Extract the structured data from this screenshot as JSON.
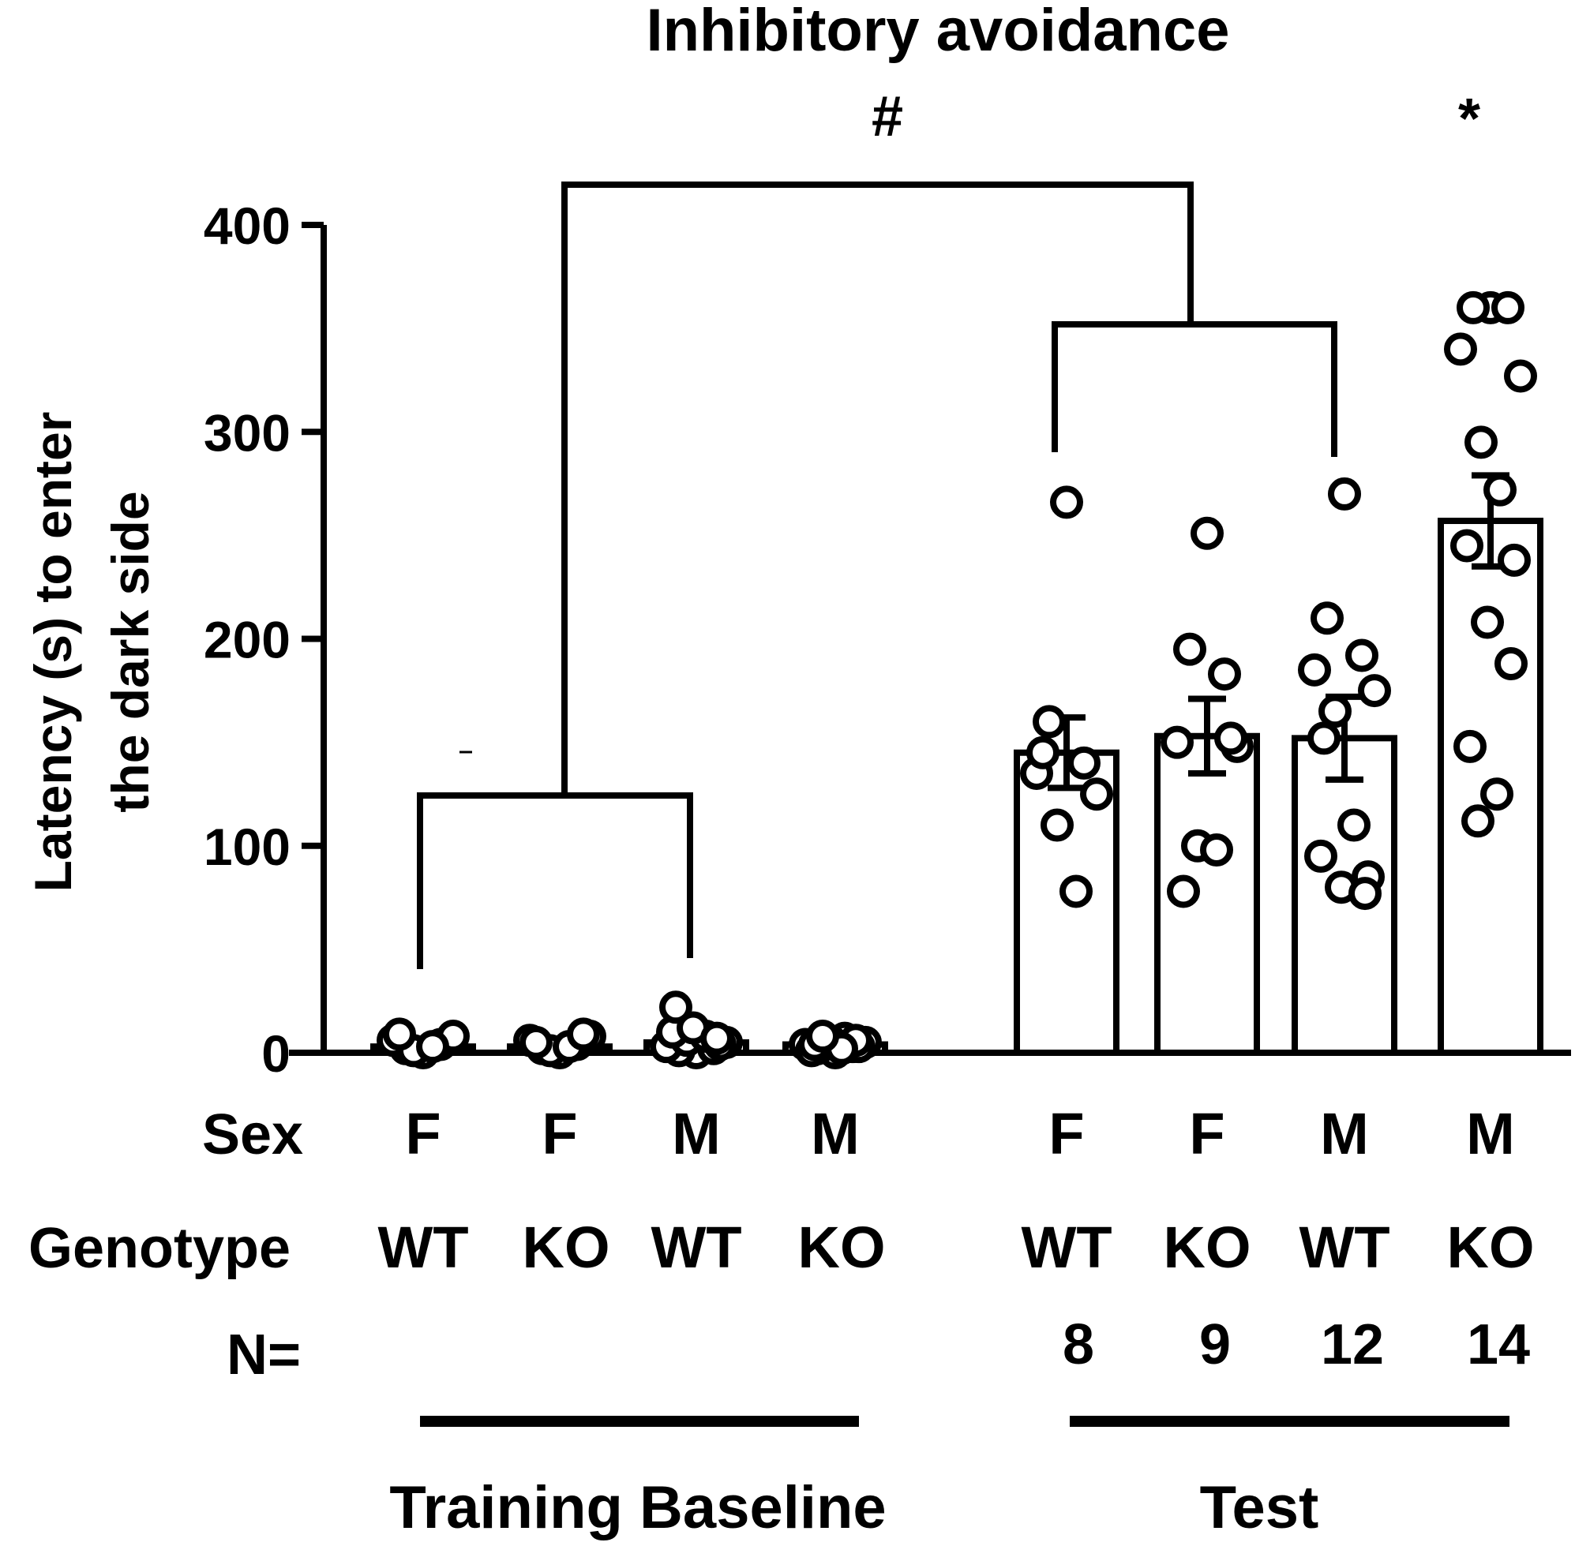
{
  "chart_data": {
    "type": "bar",
    "title": "Inhibitory avoidance",
    "ylabel_line1": "Latency (s) to enter",
    "ylabel_line2": "the dark side",
    "ylim": [
      0,
      400
    ],
    "yticks": [
      0,
      100,
      200,
      300,
      400
    ],
    "row_labels": {
      "sex": "Sex",
      "genotype": "Genotype",
      "n": "N="
    },
    "phases": [
      {
        "name": "Training Baseline"
      },
      {
        "name": "Test"
      }
    ],
    "groups": [
      {
        "phase": "Training Baseline",
        "sex": "F",
        "genotype": "WT",
        "n": "",
        "mean": 3,
        "sem": 1,
        "points": [
          0,
          2,
          4,
          6,
          8,
          1,
          3,
          9
        ]
      },
      {
        "phase": "Training Baseline",
        "sex": "F",
        "genotype": "KO",
        "n": "",
        "mean": 3,
        "sem": 1,
        "points": [
          0,
          2,
          4,
          6,
          8,
          1,
          3,
          5,
          9
        ]
      },
      {
        "phase": "Training Baseline",
        "sex": "M",
        "genotype": "WT",
        "n": "",
        "mean": 5,
        "sem": 2,
        "points": [
          0,
          1,
          2,
          3,
          5,
          6,
          8,
          10,
          4,
          12,
          7,
          22
        ]
      },
      {
        "phase": "Training Baseline",
        "sex": "M",
        "genotype": "KO",
        "n": "",
        "mean": 4,
        "sem": 1,
        "points": [
          0,
          2,
          3,
          4,
          5,
          6,
          7,
          1,
          3,
          5,
          6,
          4,
          2,
          8
        ]
      },
      {
        "phase": "Test",
        "sex": "F",
        "genotype": "WT",
        "n": "8",
        "mean": 145,
        "sem": 17,
        "points": [
          266,
          160,
          140,
          135,
          125,
          110,
          78,
          145
        ]
      },
      {
        "phase": "Test",
        "sex": "F",
        "genotype": "KO",
        "n": "9",
        "mean": 153,
        "sem": 18,
        "points": [
          251,
          195,
          183,
          150,
          148,
          100,
          98,
          78,
          152
        ]
      },
      {
        "phase": "Test",
        "sex": "M",
        "genotype": "WT",
        "n": "12",
        "mean": 152,
        "sem": 20,
        "points": [
          270,
          210,
          192,
          185,
          175,
          165,
          110,
          95,
          85,
          80,
          77,
          152
        ]
      },
      {
        "phase": "Test",
        "sex": "M",
        "genotype": "KO",
        "n": "14",
        "mean": 257,
        "sem": 22,
        "points": [
          360,
          360,
          360,
          340,
          327,
          295,
          272,
          245,
          238,
          208,
          188,
          148,
          125,
          112
        ]
      }
    ],
    "annotations": [
      {
        "text": "#",
        "meaning": "phase effect (Training vs Test)"
      },
      {
        "text": "*",
        "meaning": "Test M KO"
      }
    ]
  }
}
